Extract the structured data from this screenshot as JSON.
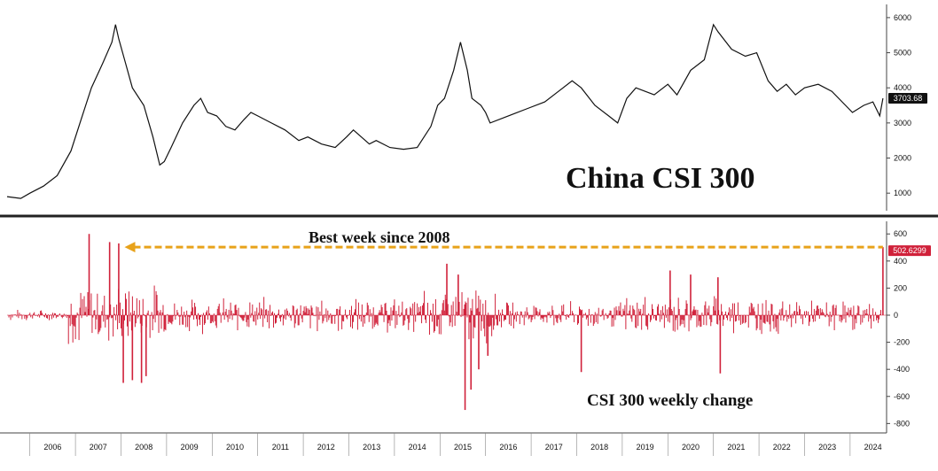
{
  "colors": {
    "price_line": "#111111",
    "weekly_bars": "#d0213a",
    "annotation_arrow": "#e8a21a",
    "last_price_badge": "#111111",
    "last_change_badge": "#d0213a",
    "divider": "#222222"
  },
  "chart_data": [
    {
      "type": "line",
      "title": "China CSI 300",
      "xlabel": "",
      "ylabel": "",
      "x_range": [
        2005.5,
        2024.8
      ],
      "ylim": [
        500,
        6300
      ],
      "yticks": [
        1000,
        2000,
        3000,
        4000,
        5000,
        6000
      ],
      "last_value_label": "3703.68",
      "x": [
        2005.5,
        2005.8,
        2006.0,
        2006.3,
        2006.6,
        2006.9,
        2007.1,
        2007.35,
        2007.6,
        2007.8,
        2007.88,
        2007.95,
        2008.1,
        2008.25,
        2008.5,
        2008.7,
        2008.85,
        2008.95,
        2009.1,
        2009.35,
        2009.6,
        2009.75,
        2009.9,
        2010.1,
        2010.3,
        2010.5,
        2010.7,
        2010.85,
        2011.0,
        2011.3,
        2011.6,
        2011.9,
        2012.1,
        2012.4,
        2012.7,
        2012.95,
        2013.1,
        2013.45,
        2013.6,
        2013.9,
        2014.2,
        2014.5,
        2014.8,
        2014.95,
        2015.1,
        2015.3,
        2015.45,
        2015.6,
        2015.7,
        2015.9,
        2016.0,
        2016.1,
        2016.5,
        2016.9,
        2017.3,
        2017.6,
        2017.9,
        2018.1,
        2018.4,
        2018.7,
        2018.9,
        2019.1,
        2019.3,
        2019.7,
        2020.0,
        2020.2,
        2020.5,
        2020.8,
        2021.0,
        2021.1,
        2021.4,
        2021.7,
        2021.95,
        2022.2,
        2022.4,
        2022.6,
        2022.8,
        2023.0,
        2023.3,
        2023.6,
        2023.9,
        2024.05,
        2024.3,
        2024.5,
        2024.65,
        2024.72
      ],
      "y": [
        900,
        850,
        1000,
        1200,
        1500,
        2200,
        3000,
        4000,
        4700,
        5300,
        5800,
        5400,
        4700,
        4000,
        3500,
        2600,
        1800,
        1900,
        2300,
        3000,
        3500,
        3700,
        3300,
        3200,
        2900,
        2800,
        3100,
        3300,
        3200,
        3000,
        2800,
        2500,
        2600,
        2400,
        2300,
        2600,
        2800,
        2400,
        2500,
        2300,
        2250,
        2300,
        2900,
        3500,
        3700,
        4500,
        5300,
        4500,
        3700,
        3500,
        3300,
        3000,
        3200,
        3400,
        3600,
        3900,
        4200,
        4000,
        3500,
        3200,
        3000,
        3700,
        4000,
        3800,
        4100,
        3800,
        4500,
        4800,
        5800,
        5600,
        5100,
        4900,
        5000,
        4200,
        3900,
        4100,
        3800,
        4000,
        4100,
        3900,
        3500,
        3300,
        3500,
        3600,
        3200,
        3703
      ]
    },
    {
      "type": "bar",
      "title": "CSI 300 weekly change",
      "xlabel": "",
      "ylabel": "",
      "x_range": [
        2005.5,
        2024.8
      ],
      "ylim": [
        -850,
        680
      ],
      "yticks": [
        -800,
        -600,
        -400,
        -200,
        0,
        200,
        400,
        600
      ],
      "last_value_label": "502.6299",
      "annotation": "Best week since 2008",
      "annotation_from": 2008.0,
      "annotation_to": 2024.72,
      "annotation_value": 502.63,
      "x_ticks": [
        "2006",
        "2007",
        "2008",
        "2009",
        "2010",
        "2011",
        "2012",
        "2013",
        "2014",
        "2015",
        "2016",
        "2017",
        "2018",
        "2019",
        "2020",
        "2021",
        "2022",
        "2023",
        "2024"
      ],
      "extreme_weeks": [
        {
          "x": 2007.3,
          "value": 600
        },
        {
          "x": 2007.75,
          "value": 540
        },
        {
          "x": 2007.95,
          "value": 530
        },
        {
          "x": 2008.05,
          "value": -500
        },
        {
          "x": 2008.25,
          "value": -480
        },
        {
          "x": 2008.45,
          "value": -500
        },
        {
          "x": 2008.55,
          "value": -450
        },
        {
          "x": 2015.15,
          "value": 380
        },
        {
          "x": 2015.4,
          "value": 300
        },
        {
          "x": 2015.55,
          "value": -700
        },
        {
          "x": 2015.68,
          "value": -550
        },
        {
          "x": 2015.85,
          "value": -400
        },
        {
          "x": 2016.05,
          "value": -300
        },
        {
          "x": 2018.1,
          "value": -420
        },
        {
          "x": 2020.05,
          "value": 330
        },
        {
          "x": 2020.5,
          "value": 300
        },
        {
          "x": 2021.1,
          "value": 280
        },
        {
          "x": 2021.15,
          "value": -430
        },
        {
          "x": 2024.72,
          "value": 502.63
        }
      ]
    }
  ]
}
